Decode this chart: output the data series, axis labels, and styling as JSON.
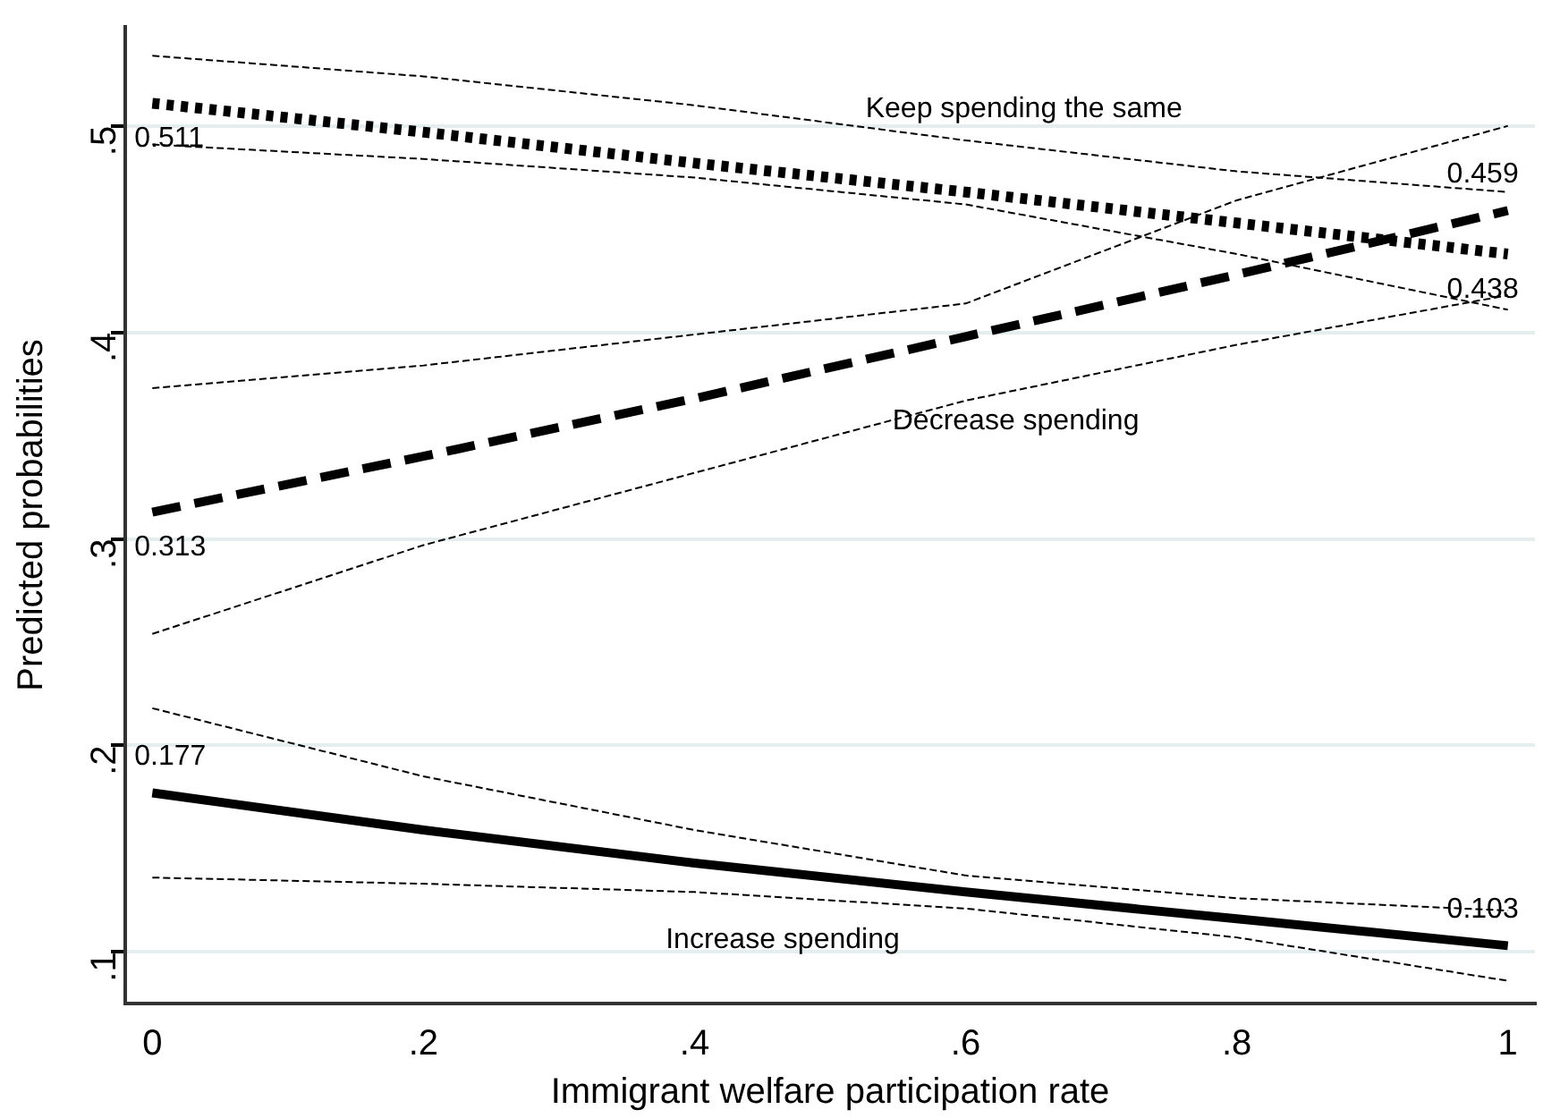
{
  "chart_data": {
    "type": "line",
    "xlabel": "Immigrant welfare participation rate",
    "ylabel": "Predicted probabilities",
    "x": [
      0,
      0.2,
      0.4,
      0.6,
      0.8,
      1
    ],
    "series": [
      {
        "name": "Keep spending the same",
        "color": "#000000",
        "line_style": "dotted",
        "values": [
          0.511,
          0.497,
          0.482,
          0.468,
          0.453,
          0.438
        ],
        "value_labels": [
          "0.511",
          null,
          null,
          null,
          null,
          "0.438"
        ]
      },
      {
        "color": "#000000",
        "line_style": "dashed",
        "values": [
          0.491,
          0.484,
          0.475,
          0.462,
          0.438,
          0.411
        ]
      },
      {
        "color": "#000000",
        "line_style": "dashed",
        "values": [
          0.534,
          0.524,
          0.51,
          0.493,
          0.478,
          0.468
        ]
      },
      {
        "name": "Decrease spending",
        "color": "#000000",
        "line_style": "dashed",
        "values": [
          0.313,
          0.34,
          0.368,
          0.398,
          0.428,
          0.459
        ],
        "value_labels": [
          "0.313",
          null,
          null,
          null,
          null,
          "0.459"
        ]
      },
      {
        "color": "#000000",
        "line_style": "dashed",
        "values": [
          0.254,
          0.297,
          0.332,
          0.367,
          0.394,
          0.418
        ]
      },
      {
        "color": "#000000",
        "line_style": "dashed",
        "values": [
          0.373,
          0.384,
          0.399,
          0.414,
          0.464,
          0.5
        ]
      },
      {
        "name": "Increase spending",
        "color": "#000000",
        "line_style": "solid",
        "values": [
          0.177,
          0.159,
          0.143,
          0.129,
          0.116,
          0.103
        ],
        "value_labels": [
          "0.177",
          null,
          null,
          null,
          null,
          "0.103"
        ]
      },
      {
        "color": "#000000",
        "line_style": "dashed",
        "values": [
          0.136,
          0.133,
          0.129,
          0.121,
          0.107,
          0.086
        ]
      },
      {
        "color": "#000000",
        "line_style": "dashed",
        "values": [
          0.218,
          0.185,
          0.159,
          0.137,
          0.126,
          0.12
        ]
      }
    ],
    "xlim": [
      -0.02,
      1.02
    ],
    "ylim": [
      0.075,
      0.548
    ],
    "xticks": [
      0,
      {
        "value": 0.2,
        "label": ".2"
      },
      {
        "value": 0.4,
        "label": ".4"
      },
      {
        "value": 0.6,
        "label": ".6"
      },
      {
        "value": 0.8,
        "label": ".8"
      },
      1
    ],
    "yticks": [
      {
        "value": 0.1,
        "label": ".1"
      },
      {
        "value": 0.2,
        "label": ".2"
      },
      {
        "value": 0.3,
        "label": ".3"
      },
      {
        "value": 0.4,
        "label": ".4"
      },
      {
        "value": 0.5,
        "label": ".5"
      }
    ],
    "grid": "y",
    "legend": false,
    "marker": "none"
  }
}
